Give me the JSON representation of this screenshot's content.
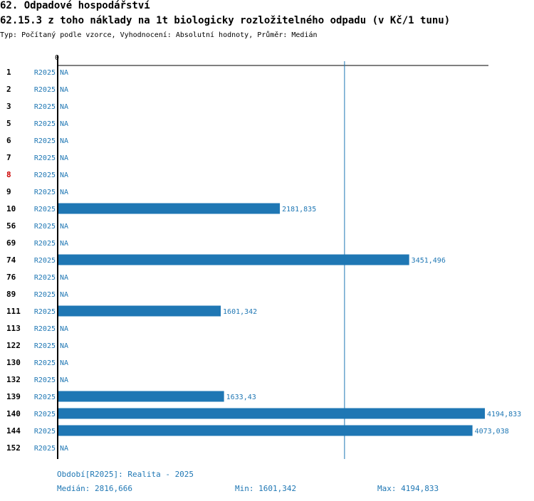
{
  "header": {
    "title": "62. Odpadové hospodářství",
    "subtitle": "62.15.3 z toho náklady na 1t biologicky rozložitelného odpadu (v Kč/1 tunu)",
    "meta": "Typ: Počítaný podle vzorce, Vyhodnocení: Absolutní hodnoty, Průměr: Medián"
  },
  "chart_data": {
    "type": "bar",
    "orientation": "horizontal",
    "axis_zero_label": "0",
    "series_label": "R2025",
    "na_label": "NA",
    "xlim": [
      0,
      4194.833
    ],
    "reference_line": 2816.666,
    "bar_color": "#1f77b4",
    "highlight_color": "#cc0000",
    "categories": [
      "1",
      "2",
      "3",
      "5",
      "6",
      "7",
      "8",
      "9",
      "10",
      "56",
      "69",
      "74",
      "76",
      "89",
      "111",
      "113",
      "122",
      "130",
      "132",
      "139",
      "140",
      "144",
      "152"
    ],
    "highlighted": [
      "8"
    ],
    "values": [
      null,
      null,
      null,
      null,
      null,
      null,
      null,
      null,
      2181.835,
      null,
      null,
      3451.496,
      null,
      null,
      1601.342,
      null,
      null,
      null,
      null,
      1633.43,
      4194.833,
      4073.038,
      null
    ],
    "value_labels": [
      "NA",
      "NA",
      "NA",
      "NA",
      "NA",
      "NA",
      "NA",
      "NA",
      "2181,835",
      "NA",
      "NA",
      "3451,496",
      "NA",
      "NA",
      "1601,342",
      "NA",
      "NA",
      "NA",
      "NA",
      "1633,43",
      "4194,833",
      "4073,038",
      "NA"
    ]
  },
  "footer": {
    "period": "Období[R2025]: Realita - 2025",
    "median": "Medián: 2816,666",
    "min": "Min: 1601,342",
    "max": "Max: 4194,833"
  }
}
